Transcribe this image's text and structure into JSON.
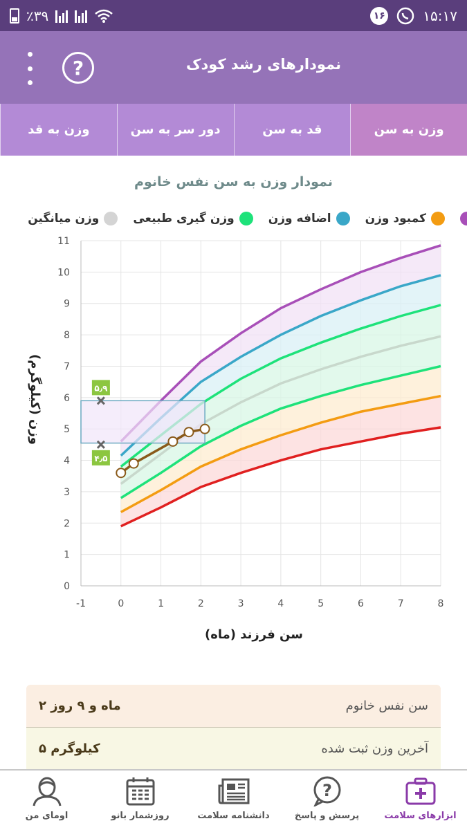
{
  "status": {
    "battery": "٪۳۹",
    "time": "۱۵:۱۷",
    "notification_count": "۱۶"
  },
  "header": {
    "title": "نمودارهای رشد کودک",
    "help_label": "?"
  },
  "tabs": [
    {
      "label": "وزن به سن",
      "active": true
    },
    {
      "label": "قد به سن",
      "active": false
    },
    {
      "label": "دور سر به سن",
      "active": false
    },
    {
      "label": "وزن به قد",
      "active": false
    }
  ],
  "chart_data": {
    "type": "line",
    "title": "نمودار وزن به سن نفس خانوم",
    "xlabel": "سن فرزند (ماه)",
    "ylabel": "وزن (کیلوگرم)",
    "xlim": [
      -1,
      8
    ],
    "ylim": [
      0,
      11
    ],
    "x_ticks": [
      -1,
      0,
      1,
      2,
      3,
      4,
      5,
      6,
      7,
      8
    ],
    "y_ticks": [
      0,
      1,
      2,
      3,
      4,
      5,
      6,
      7,
      8,
      9,
      10,
      11
    ],
    "grid": true,
    "legend_position": "top",
    "x": [
      0,
      1,
      2,
      3,
      4,
      5,
      6,
      7,
      8
    ],
    "series": [
      {
        "name": "",
        "color": "#e02020",
        "values": [
          1.9,
          2.5,
          3.15,
          3.6,
          4.0,
          4.35,
          4.6,
          4.85,
          5.05
        ]
      },
      {
        "name": "کمبود وزن",
        "color": "#f39c12",
        "values": [
          2.35,
          3.05,
          3.8,
          4.35,
          4.8,
          5.2,
          5.55,
          5.8,
          6.05
        ]
      },
      {
        "name": "وزن گیری طبیعی",
        "color": "#1ee27a",
        "values": [
          2.8,
          3.6,
          4.45,
          5.1,
          5.65,
          6.05,
          6.4,
          6.7,
          7.0
        ]
      },
      {
        "name": "وزن میانگین",
        "color": "#c8d8cc",
        "values": [
          3.25,
          4.2,
          5.15,
          5.85,
          6.45,
          6.9,
          7.3,
          7.65,
          7.95
        ]
      },
      {
        "name": "وزن گیری طبیعی",
        "color": "#1ee27a",
        "values": [
          3.8,
          4.8,
          5.8,
          6.6,
          7.25,
          7.75,
          8.2,
          8.6,
          8.95
        ]
      },
      {
        "name": "اضافه وزن",
        "color": "#3aa7c8",
        "values": [
          4.15,
          5.35,
          6.5,
          7.3,
          8.0,
          8.6,
          9.1,
          9.55,
          9.9
        ]
      },
      {
        "name": "",
        "color": "#a84fb8",
        "values": [
          4.6,
          5.9,
          7.15,
          8.05,
          8.85,
          9.45,
          10.0,
          10.45,
          10.85
        ]
      }
    ],
    "child_measurements": {
      "color": "#8a5a1a",
      "x": [
        0,
        0.32,
        1.3,
        1.7,
        2.1
      ],
      "y": [
        3.6,
        3.9,
        4.6,
        4.9,
        5.0
      ]
    },
    "range_box": {
      "x": [
        -1,
        2.1
      ],
      "y": [
        4.55,
        5.9
      ],
      "max_label": "۵٫۹",
      "min_label": "۴٫۵",
      "marker_x": -0.5,
      "marker_max": 5.9,
      "marker_min": 4.5
    }
  },
  "legend": [
    {
      "name": "",
      "color": "#a84fb8"
    },
    {
      "name": "کمبود وزن",
      "color": "#f39c12"
    },
    {
      "name": "اضافه وزن",
      "color": "#3aa7c8"
    },
    {
      "name": "وزن گیری طبیعی",
      "color": "#1ee27a"
    },
    {
      "name": "وزن میانگین",
      "color": "#d4d4d4"
    }
  ],
  "info": {
    "age_label": "سن نفس خانوم",
    "age_value": "۲ ماه و ۹ روز",
    "weight_label": "آخرین وزن ثبت شده",
    "weight_value": "۵ کیلوگرم"
  },
  "nav": [
    {
      "label": "ابزارهای سلامت",
      "icon": "health-kit-icon",
      "active": true
    },
    {
      "label": "پرسش و پاسخ",
      "icon": "question-chat-icon",
      "active": false
    },
    {
      "label": "دانشنامه سلامت",
      "icon": "newspaper-icon",
      "active": false
    },
    {
      "label": "روزشمار بانو",
      "icon": "calendar-icon",
      "active": false
    },
    {
      "label": "اومای من",
      "icon": "user-avatar-icon",
      "active": false
    }
  ]
}
